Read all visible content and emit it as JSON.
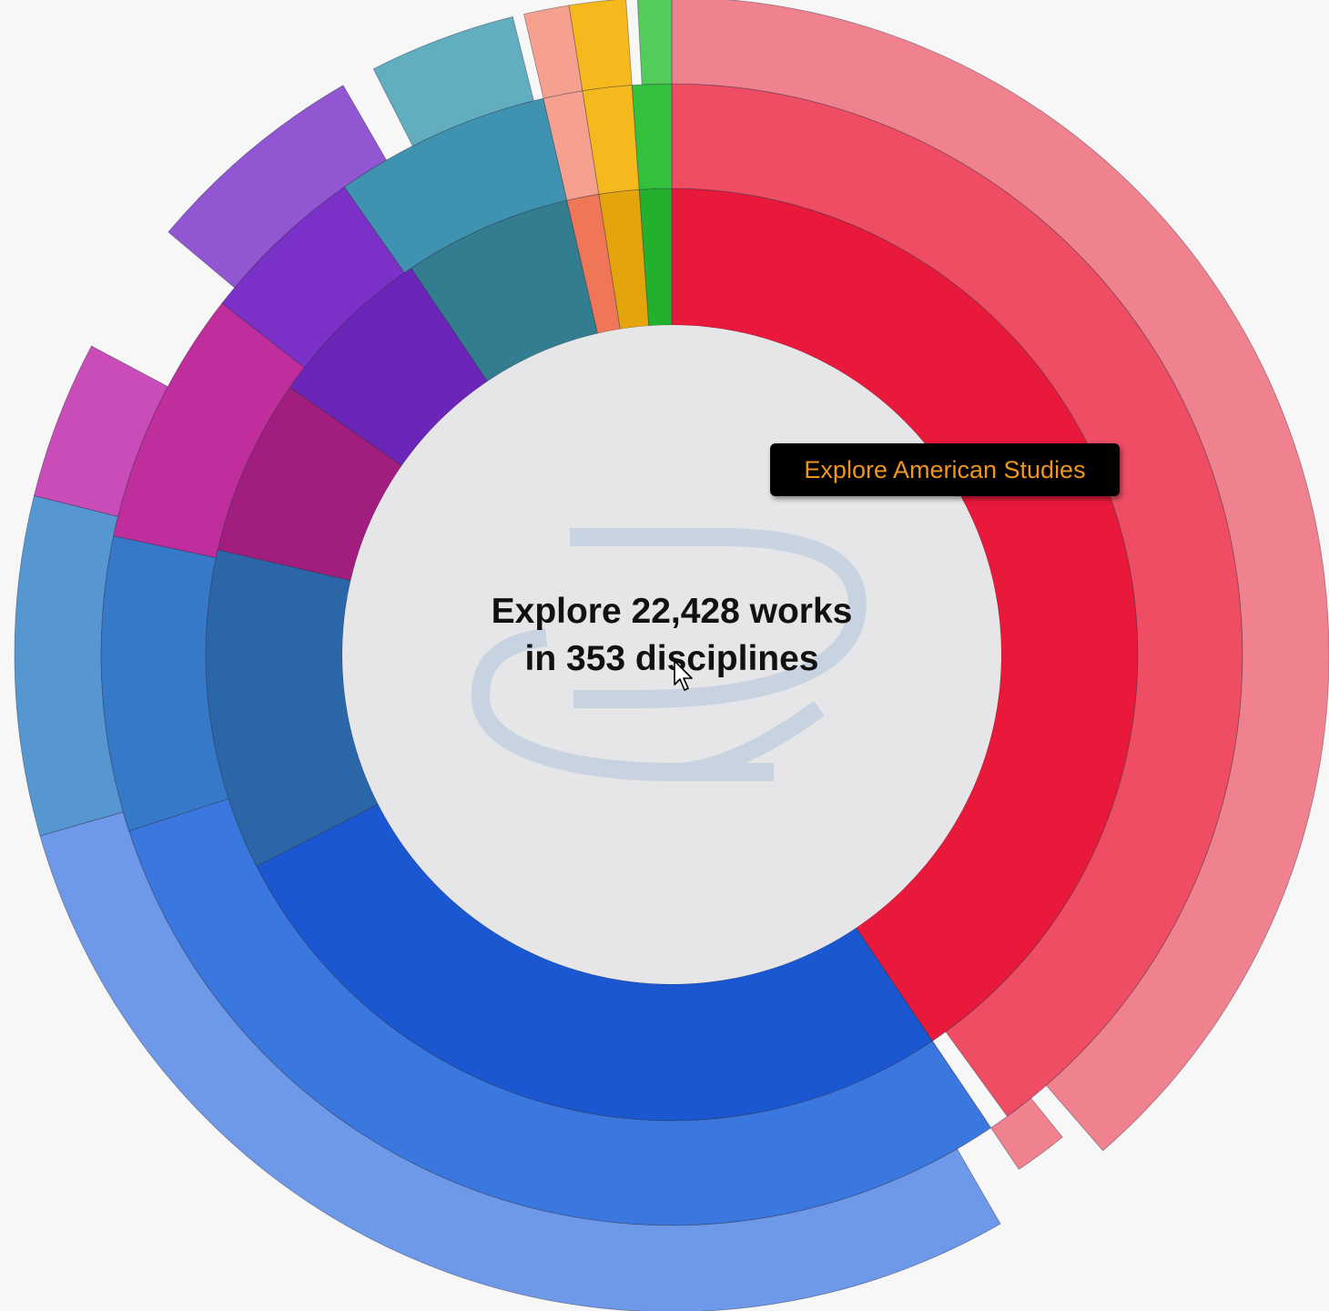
{
  "center": {
    "line1": "Explore 22,428 works",
    "line2": "in 353 disciplines"
  },
  "tooltip": {
    "label": "Explore American Studies"
  },
  "icons": {
    "logo": "curved-arrow-logo-icon",
    "cursor": "hand-pointer-cursor-icon"
  },
  "colors": {
    "background": "#f7f7f7",
    "center_fill": "#e6e6e8",
    "tooltip_bg": "#000000",
    "tooltip_text": "#f0941e",
    "logo": "#c4d1e0"
  },
  "chart_data": {
    "type": "sunburst",
    "rings": 3,
    "categories": [
      {
        "color": [
          "#e8193a",
          "#ef4d64",
          "#f08290"
        ],
        "levels": [
          [
            0,
            146
          ],
          [
            0,
            144
          ],
          [
            0,
            139
          ]
        ],
        "subdivisions": [
          [
            146,
            148
          ],
          [
            148,
            150
          ],
          [
            150,
            152
          ],
          [
            152,
            154
          ],
          [
            154,
            156
          ]
        ],
        "outer_extra": [
          [
            141,
            146
          ]
        ]
      },
      {
        "color": [
          "#1b57d0",
          "#3a78e0",
          "#6d99e8"
        ],
        "levels": [
          [
            146,
            243
          ],
          [
            146,
            252
          ],
          [
            150,
            254
          ]
        ]
      },
      {
        "color": [
          "#2b67a8",
          "#3679c9",
          "#5697d2"
        ],
        "levels": [
          [
            243,
            283
          ],
          [
            252,
            282
          ],
          [
            254,
            284
          ]
        ]
      },
      {
        "color": [
          "#a11e7e",
          "#c02d9d",
          "#c94cb8"
        ],
        "levels": [
          [
            283,
            305
          ],
          [
            282,
            308
          ],
          [
            284,
            298
          ]
        ]
      },
      {
        "color": [
          "#6b25b8",
          "#7b30c8",
          "#9256d2"
        ],
        "levels": [
          [
            305,
            326
          ],
          [
            308,
            325
          ],
          [
            310,
            330
          ]
        ]
      },
      {
        "color": [
          "#337d91",
          "#3f93b1",
          "#61aec1"
        ],
        "levels": [
          [
            326,
            347
          ],
          [
            325,
            347
          ],
          [
            333,
            346
          ]
        ]
      },
      {
        "color": [
          "#ef7758",
          "#f6a08f",
          "#f6a08f"
        ],
        "levels": [
          [
            347,
            351
          ],
          [
            347,
            351
          ],
          [
            347,
            351
          ]
        ]
      },
      {
        "color": [
          "#e3a50b",
          "#f5b91d",
          "#f5b91d"
        ],
        "levels": [
          [
            351,
            356
          ],
          [
            351,
            356
          ],
          [
            351,
            356
          ]
        ]
      },
      {
        "color": [
          "#23b02c",
          "#33c13d",
          "#54cc5a"
        ],
        "levels": [
          [
            356,
            360
          ],
          [
            356,
            360
          ],
          [
            357,
            360
          ]
        ]
      }
    ]
  }
}
